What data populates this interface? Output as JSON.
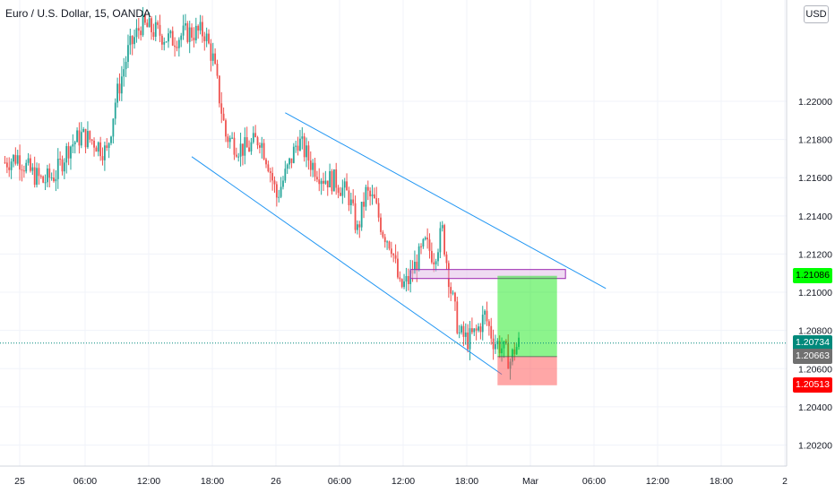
{
  "header": {
    "title": "Euro / U.S. Dollar, 15, OANDA",
    "currency": "USD"
  },
  "colors": {
    "up": "#26a69a",
    "down": "#ef5350",
    "channel": "#2196f3",
    "target": "#00ff00",
    "current": "#00897b",
    "entry": "#707070",
    "stop": "#ff0000",
    "rect_zone": "#9c27b0"
  },
  "price_badges": {
    "target": "1.21086",
    "current": "1.20734",
    "entry": "1.20663",
    "stop": "1.20513"
  },
  "chart_data": {
    "type": "candlestick",
    "title": "Euro / U.S. Dollar, 15, OANDA",
    "ylim": [
      1.2016,
      1.2246
    ],
    "y_ticks": [
      "1.22000",
      "1.21800",
      "1.21600",
      "1.21400",
      "1.21200",
      "1.21000",
      "1.20800",
      "1.20600",
      "1.20400",
      "1.20200"
    ],
    "x_ticks": [
      "25",
      "06:00",
      "12:00",
      "18:00",
      "26",
      "06:00",
      "12:00",
      "18:00",
      "Mar",
      "06:00",
      "12:00",
      "18:00",
      "2"
    ],
    "path": [
      {
        "t": 0,
        "p": 1.2168
      },
      {
        "t": 6,
        "p": 1.2171
      },
      {
        "t": 12,
        "p": 1.2163
      },
      {
        "t": 18,
        "p": 1.2158
      },
      {
        "t": 24,
        "p": 1.2162
      },
      {
        "t": 30,
        "p": 1.2176
      },
      {
        "t": 36,
        "p": 1.2182
      },
      {
        "t": 42,
        "p": 1.2179
      },
      {
        "t": 48,
        "p": 1.2173
      },
      {
        "t": 52,
        "p": 1.22
      },
      {
        "t": 58,
        "p": 1.2226
      },
      {
        "t": 64,
        "p": 1.224
      },
      {
        "t": 72,
        "p": 1.2236
      },
      {
        "t": 78,
        "p": 1.2232
      },
      {
        "t": 86,
        "p": 1.2236
      },
      {
        "t": 94,
        "p": 1.2236
      },
      {
        "t": 98,
        "p": 1.2222
      },
      {
        "t": 104,
        "p": 1.2182
      },
      {
        "t": 110,
        "p": 1.2176
      },
      {
        "t": 114,
        "p": 1.2175
      },
      {
        "t": 120,
        "p": 1.2181
      },
      {
        "t": 124,
        "p": 1.2168
      },
      {
        "t": 128,
        "p": 1.215
      },
      {
        "t": 134,
        "p": 1.2167
      },
      {
        "t": 138,
        "p": 1.218
      },
      {
        "t": 144,
        "p": 1.2168
      },
      {
        "t": 150,
        "p": 1.216
      },
      {
        "t": 156,
        "p": 1.2158
      },
      {
        "t": 162,
        "p": 1.215
      },
      {
        "t": 166,
        "p": 1.2132
      },
      {
        "t": 170,
        "p": 1.2152
      },
      {
        "t": 174,
        "p": 1.2147
      },
      {
        "t": 178,
        "p": 1.2132
      },
      {
        "t": 182,
        "p": 1.2125
      },
      {
        "t": 186,
        "p": 1.2102
      },
      {
        "t": 190,
        "p": 1.2106
      },
      {
        "t": 194,
        "p": 1.2116
      },
      {
        "t": 198,
        "p": 1.2125
      },
      {
        "t": 202,
        "p": 1.2119
      },
      {
        "t": 206,
        "p": 1.2132
      },
      {
        "t": 210,
        "p": 1.2101
      },
      {
        "t": 214,
        "p": 1.2078
      },
      {
        "t": 218,
        "p": 1.2075
      },
      {
        "t": 222,
        "p": 1.2079
      },
      {
        "t": 226,
        "p": 1.2088
      },
      {
        "t": 230,
        "p": 1.2075
      },
      {
        "t": 234,
        "p": 1.2071
      },
      {
        "t": 238,
        "p": 1.2064
      },
      {
        "t": 240,
        "p": 1.207
      },
      {
        "t": 242,
        "p": 1.2073
      }
    ],
    "drawings": {
      "channel_upper": {
        "p1": {
          "t": 132,
          "p": 1.2194
        },
        "p2": {
          "t": 283,
          "p": 1.2102
        }
      },
      "channel_lower": {
        "p1": {
          "t": 88,
          "p": 1.2171
        },
        "p2": {
          "t": 234,
          "p": 1.2057
        }
      },
      "resistance_rect": {
        "t1": 191,
        "t2": 264,
        "p1": 1.21086,
        "p2": 1.21105
      },
      "position": {
        "t1": 232,
        "t2": 260,
        "target": 1.21086,
        "entry": 1.20663,
        "stop": 1.20513
      }
    }
  }
}
